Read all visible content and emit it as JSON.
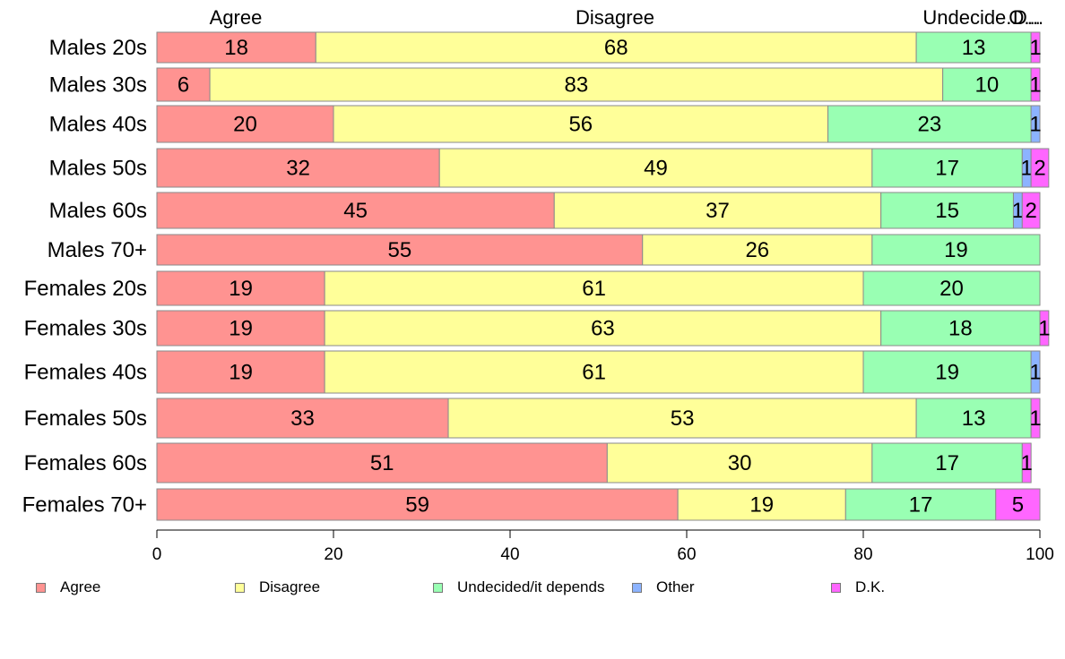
{
  "chart_data": {
    "type": "bar",
    "orientation": "horizontal",
    "stacked": true,
    "categories": [
      "Males 20s",
      "Males 30s",
      "Males 40s",
      "Males 50s",
      "Males 60s",
      "Males 70+",
      "Females 20s",
      "Females 30s",
      "Females 40s",
      "Females 50s",
      "Females 60s",
      "Females 70+"
    ],
    "series": [
      {
        "name": "Agree",
        "color": "#ff9391",
        "values": [
          18,
          6,
          20,
          32,
          45,
          55,
          19,
          19,
          19,
          33,
          51,
          59
        ]
      },
      {
        "name": "Disagree",
        "color": "#ffff99",
        "values": [
          68,
          83,
          56,
          49,
          37,
          26,
          61,
          63,
          61,
          53,
          30,
          19
        ]
      },
      {
        "name": "Undecided/it depends",
        "color": "#99ffb3",
        "values": [
          13,
          10,
          23,
          17,
          15,
          19,
          20,
          18,
          19,
          13,
          17,
          17
        ]
      },
      {
        "name": "Other",
        "color": "#8cb3ff",
        "values": [
          0,
          0,
          1,
          1,
          1,
          0,
          0,
          0,
          1,
          0,
          0,
          0
        ]
      },
      {
        "name": "D.K.",
        "color": "#ff66ff",
        "values": [
          1,
          1,
          0,
          2,
          2,
          0,
          0,
          1,
          0,
          1,
          1,
          5
        ]
      }
    ],
    "data_labels": [
      [
        "18",
        "68",
        "13",
        "",
        "1"
      ],
      [
        "6",
        "83",
        "10",
        "",
        "1"
      ],
      [
        "20",
        "56",
        "23",
        "1",
        ""
      ],
      [
        "32",
        "49",
        "17",
        "1",
        "2"
      ],
      [
        "45",
        "37",
        "15",
        "1",
        "2"
      ],
      [
        "55",
        "26",
        "19",
        "",
        ""
      ],
      [
        "19",
        "61",
        "20",
        "",
        ""
      ],
      [
        "19",
        "63",
        "18",
        "",
        "1"
      ],
      [
        "19",
        "61",
        "19",
        "1",
        ""
      ],
      [
        "33",
        "53",
        "13",
        "",
        "1"
      ],
      [
        "51",
        "30",
        "17",
        "",
        "1"
      ],
      [
        "59",
        "19",
        "17",
        "",
        "5"
      ]
    ],
    "top_labels": [
      "Agree",
      "Disagree",
      "Undecide...",
      "O...",
      "D..."
    ],
    "x_ticks": [
      0,
      20,
      40,
      60,
      80,
      100
    ],
    "xlim": [
      0,
      100
    ],
    "title": "",
    "xlabel": "",
    "ylabel": "",
    "grid": false,
    "legend_position": "bottom"
  }
}
